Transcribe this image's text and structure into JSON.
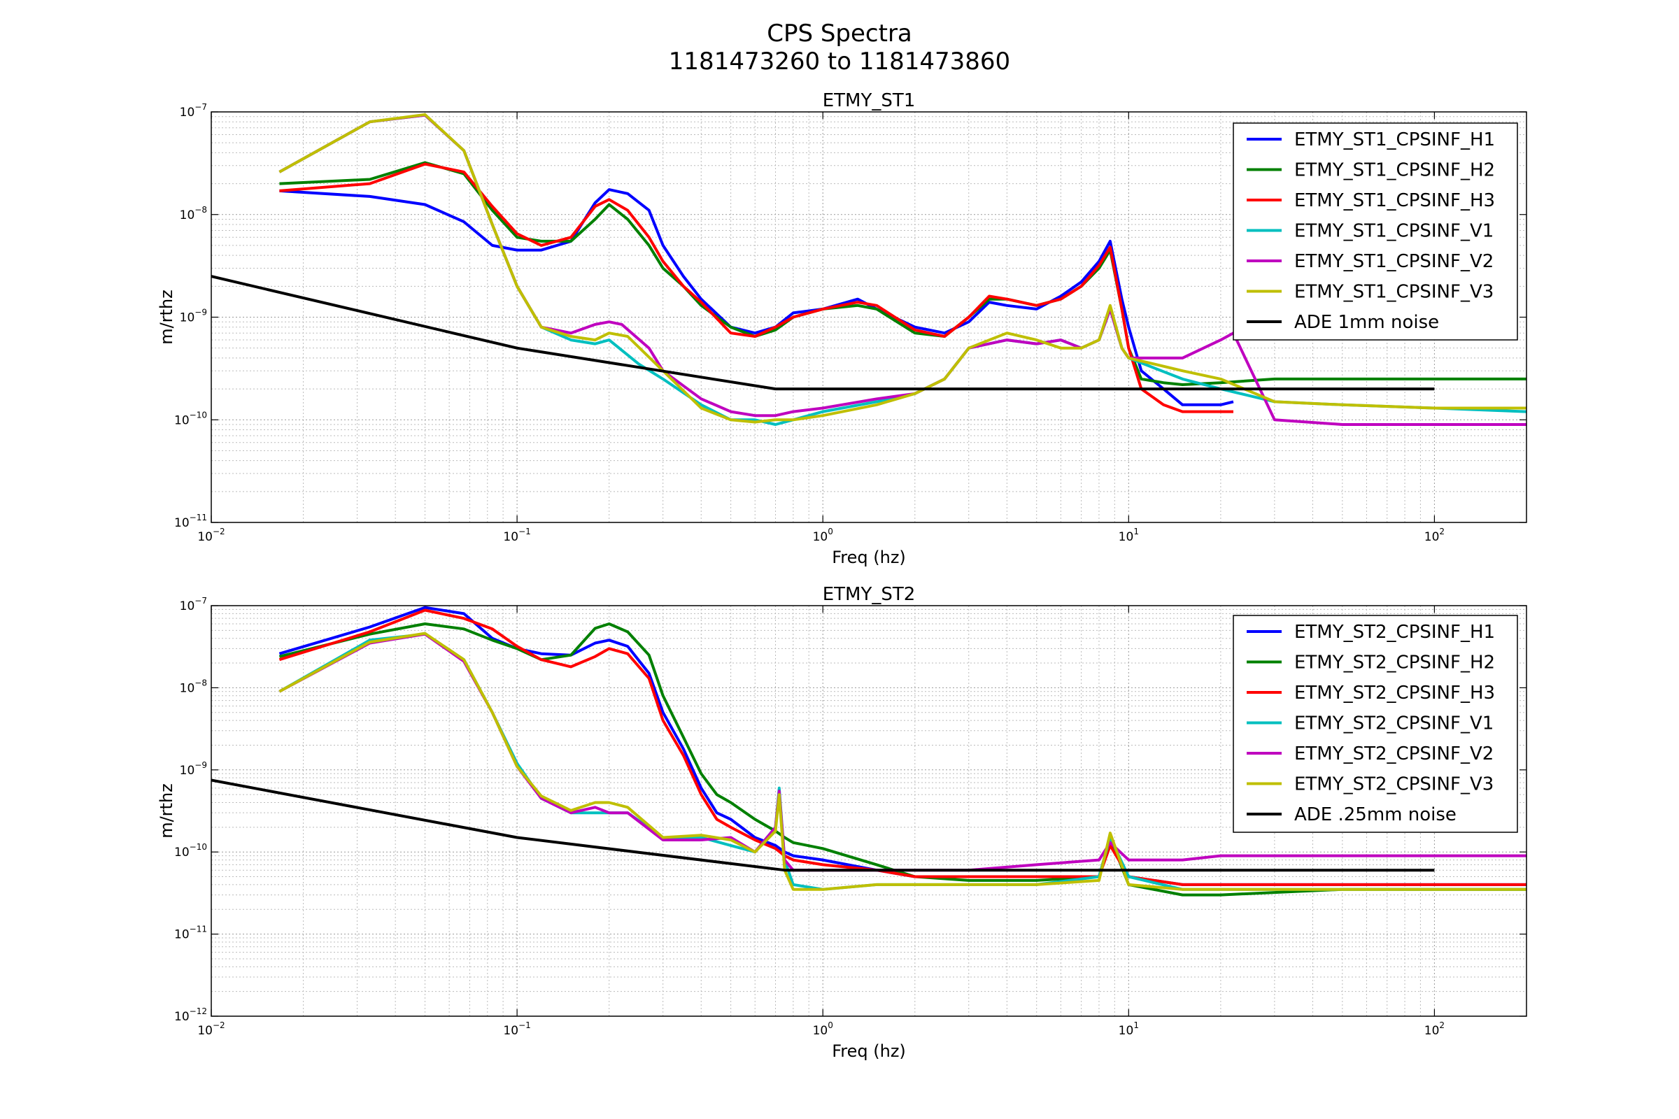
{
  "figure": {
    "title_line1": "CPS Spectra",
    "title_line2": "1181473260 to 1181473860"
  },
  "colors": {
    "blue": "#0000ff",
    "green": "#008000",
    "red": "#ff0000",
    "cyan": "#00bfbf",
    "magenta": "#bf00bf",
    "olive": "#bfbf00",
    "black": "#000000"
  },
  "chart_data": [
    {
      "type": "line",
      "title": "ETMY_ST1",
      "xlabel": "Freq (hz)",
      "ylabel": "m/rthz",
      "xscale": "log",
      "yscale": "log",
      "xlim": [
        0.01,
        200
      ],
      "ylim": [
        1e-11,
        1e-07
      ],
      "x_tick_labels": [
        "10^-2",
        "10^-1",
        "10^0",
        "10^1",
        "10^2"
      ],
      "y_tick_labels": [
        "10^-11",
        "10^-10",
        "10^-9",
        "10^-8",
        "10^-7"
      ],
      "grid": true,
      "legend_position": "upper-right",
      "series": [
        {
          "name": "ETMY_ST1_CPSINF_H1",
          "color": "#0000ff",
          "x": [
            0.0167,
            0.033,
            0.05,
            0.067,
            0.083,
            0.1,
            0.12,
            0.15,
            0.18,
            0.2,
            0.23,
            0.27,
            0.3,
            0.35,
            0.4,
            0.5,
            0.6,
            0.7,
            0.8,
            1.0,
            1.3,
            1.5,
            2,
            2.5,
            3,
            3.5,
            4,
            5,
            6,
            7,
            8,
            8.7,
            9.5,
            10,
            11,
            13,
            15,
            20,
            22
          ],
          "y": [
            1.7e-08,
            1.5e-08,
            1.25e-08,
            8.5e-09,
            5e-09,
            4.5e-09,
            4.5e-09,
            5.5e-09,
            1.3e-08,
            1.75e-08,
            1.6e-08,
            1.1e-08,
            5e-09,
            2.5e-09,
            1.5e-09,
            8e-10,
            7e-10,
            8e-10,
            1.1e-09,
            1.2e-09,
            1.5e-09,
            1.2e-09,
            8e-10,
            7e-10,
            9e-10,
            1.4e-09,
            1.3e-09,
            1.2e-09,
            1.6e-09,
            2.2e-09,
            3.5e-09,
            5.5e-09,
            1.5e-09,
            8e-10,
            3e-10,
            2e-10,
            1.4e-10,
            1.4e-10,
            1.5e-10
          ]
        },
        {
          "name": "ETMY_ST1_CPSINF_H2",
          "color": "#008000",
          "x": [
            0.0167,
            0.033,
            0.05,
            0.067,
            0.083,
            0.1,
            0.12,
            0.15,
            0.18,
            0.2,
            0.23,
            0.27,
            0.3,
            0.35,
            0.4,
            0.5,
            0.6,
            0.7,
            0.8,
            1.0,
            1.3,
            1.5,
            2,
            2.5,
            3,
            3.5,
            4,
            5,
            6,
            7,
            8,
            8.7,
            9.5,
            10,
            11,
            13,
            15,
            20,
            30,
            50,
            100,
            200
          ],
          "y": [
            2e-08,
            2.2e-08,
            3.2e-08,
            2.5e-08,
            1.1e-08,
            6e-09,
            5.5e-09,
            5.5e-09,
            9e-09,
            1.25e-08,
            9e-09,
            5e-09,
            3e-09,
            2e-09,
            1.3e-09,
            8e-10,
            6.5e-10,
            7.5e-10,
            1e-09,
            1.2e-09,
            1.3e-09,
            1.2e-09,
            7e-10,
            6.5e-10,
            1e-09,
            1.5e-09,
            1.5e-09,
            1.3e-09,
            1.5e-09,
            2e-09,
            3e-09,
            4.5e-09,
            1.2e-09,
            5e-10,
            2.5e-10,
            2.3e-10,
            2.2e-10,
            2.3e-10,
            2.5e-10,
            2.5e-10,
            2.5e-10,
            2.5e-10
          ]
        },
        {
          "name": "ETMY_ST1_CPSINF_H3",
          "color": "#ff0000",
          "x": [
            0.0167,
            0.033,
            0.05,
            0.067,
            0.083,
            0.1,
            0.12,
            0.15,
            0.18,
            0.2,
            0.23,
            0.27,
            0.3,
            0.35,
            0.4,
            0.5,
            0.6,
            0.7,
            0.8,
            1.0,
            1.3,
            1.5,
            2,
            2.5,
            3,
            3.5,
            4,
            5,
            6,
            7,
            8,
            8.7,
            9.5,
            10,
            11,
            13,
            15,
            20,
            22
          ],
          "y": [
            1.7e-08,
            2e-08,
            3.1e-08,
            2.6e-08,
            1.2e-08,
            6.5e-09,
            5e-09,
            6e-09,
            1.2e-08,
            1.4e-08,
            1.1e-08,
            6e-09,
            3.5e-09,
            2e-09,
            1.4e-09,
            7e-10,
            6.5e-10,
            8e-10,
            1e-09,
            1.2e-09,
            1.4e-09,
            1.3e-09,
            7.5e-10,
            6.5e-10,
            1e-09,
            1.6e-09,
            1.5e-09,
            1.3e-09,
            1.5e-09,
            2e-09,
            3.2e-09,
            4.8e-09,
            1.2e-09,
            5e-10,
            2e-10,
            1.4e-10,
            1.2e-10,
            1.2e-10,
            1.2e-10
          ]
        },
        {
          "name": "ETMY_ST1_CPSINF_V1",
          "color": "#00bfbf",
          "x": [
            0.0167,
            0.033,
            0.05,
            0.067,
            0.083,
            0.1,
            0.12,
            0.15,
            0.18,
            0.2,
            0.25,
            0.3,
            0.4,
            0.5,
            0.6,
            0.7,
            0.8,
            1.0,
            1.5,
            2,
            2.5,
            3,
            4,
            5,
            6,
            7,
            8,
            8.7,
            9.5,
            10,
            15,
            20,
            30,
            50,
            100,
            200
          ],
          "y": [
            2.6e-08,
            8e-08,
            9.3e-08,
            4.2e-08,
            8e-09,
            2e-09,
            8e-10,
            6e-10,
            5.5e-10,
            6e-10,
            3.5e-10,
            2.5e-10,
            1.4e-10,
            1e-10,
            1e-10,
            9e-11,
            1e-10,
            1.2e-10,
            1.5e-10,
            1.8e-10,
            2.5e-10,
            5e-10,
            6e-10,
            5.5e-10,
            6e-10,
            5e-10,
            6e-10,
            1.2e-09,
            5e-10,
            4e-10,
            2.5e-10,
            2e-10,
            1.5e-10,
            1.4e-10,
            1.3e-10,
            1.2e-10
          ]
        },
        {
          "name": "ETMY_ST1_CPSINF_V2",
          "color": "#bf00bf",
          "x": [
            0.0167,
            0.033,
            0.05,
            0.067,
            0.083,
            0.1,
            0.12,
            0.15,
            0.18,
            0.2,
            0.22,
            0.27,
            0.3,
            0.4,
            0.5,
            0.6,
            0.7,
            0.8,
            1.0,
            1.5,
            2,
            2.5,
            3,
            4,
            5,
            6,
            7,
            8,
            8.7,
            9.5,
            10,
            15,
            20,
            22,
            30,
            50,
            100,
            200
          ],
          "y": [
            2.6e-08,
            8e-08,
            9.3e-08,
            4.2e-08,
            8e-09,
            2e-09,
            8e-10,
            7e-10,
            8.5e-10,
            9e-10,
            8.5e-10,
            5e-10,
            3e-10,
            1.6e-10,
            1.2e-10,
            1.1e-10,
            1.1e-10,
            1.2e-10,
            1.3e-10,
            1.6e-10,
            1.8e-10,
            2.5e-10,
            5e-10,
            6e-10,
            5.5e-10,
            6e-10,
            5e-10,
            6e-10,
            1.2e-09,
            5e-10,
            4e-10,
            4e-10,
            6e-10,
            7e-10,
            1e-10,
            9e-11,
            9e-11,
            9e-11
          ]
        },
        {
          "name": "ETMY_ST1_CPSINF_V3",
          "color": "#bfbf00",
          "x": [
            0.0167,
            0.033,
            0.05,
            0.067,
            0.083,
            0.1,
            0.12,
            0.15,
            0.18,
            0.2,
            0.23,
            0.3,
            0.4,
            0.5,
            0.6,
            0.7,
            0.8,
            1.0,
            1.5,
            2,
            2.5,
            3,
            4,
            5,
            6,
            7,
            8,
            8.7,
            9.5,
            10,
            15,
            20,
            30,
            50,
            100,
            200
          ],
          "y": [
            2.6e-08,
            8e-08,
            9.4e-08,
            4.2e-08,
            8e-09,
            2e-09,
            8e-10,
            6.5e-10,
            6e-10,
            7e-10,
            6.5e-10,
            3e-10,
            1.3e-10,
            1e-10,
            9.5e-11,
            1e-10,
            1e-10,
            1.1e-10,
            1.4e-10,
            1.8e-10,
            2.5e-10,
            5e-10,
            7e-10,
            6e-10,
            5e-10,
            5e-10,
            6e-10,
            1.3e-09,
            5e-10,
            4e-10,
            3e-10,
            2.5e-10,
            1.5e-10,
            1.4e-10,
            1.3e-10,
            1.3e-10
          ]
        },
        {
          "name": "ADE 1mm noise",
          "color": "#000000",
          "x": [
            0.01,
            0.1,
            0.7,
            100
          ],
          "y": [
            2.5e-09,
            5e-10,
            2e-10,
            2e-10
          ]
        }
      ]
    },
    {
      "type": "line",
      "title": "ETMY_ST2",
      "xlabel": "Freq (hz)",
      "ylabel": "m/rthz",
      "xscale": "log",
      "yscale": "log",
      "xlim": [
        0.01,
        200
      ],
      "ylim": [
        1e-12,
        1e-07
      ],
      "x_tick_labels": [
        "10^-2",
        "10^-1",
        "10^0",
        "10^1",
        "10^2"
      ],
      "y_tick_labels": [
        "10^-12",
        "10^-11",
        "10^-10",
        "10^-9",
        "10^-8",
        "10^-7"
      ],
      "grid": true,
      "legend_position": "upper-right",
      "series": [
        {
          "name": "ETMY_ST2_CPSINF_H1",
          "color": "#0000ff",
          "x": [
            0.0167,
            0.033,
            0.05,
            0.067,
            0.083,
            0.1,
            0.12,
            0.15,
            0.18,
            0.2,
            0.23,
            0.27,
            0.3,
            0.35,
            0.4,
            0.45,
            0.5,
            0.6,
            0.7,
            0.75,
            0.8,
            1.0,
            1.5,
            2,
            3,
            5,
            8,
            8.7,
            10,
            15,
            20,
            50,
            100,
            200
          ],
          "y": [
            2.6e-08,
            5.5e-08,
            9.5e-08,
            8e-08,
            4e-08,
            3e-08,
            2.6e-08,
            2.5e-08,
            3.5e-08,
            3.8e-08,
            3.2e-08,
            1.5e-08,
            5e-09,
            1.8e-09,
            6e-10,
            3e-10,
            2.5e-10,
            1.5e-10,
            1.2e-10,
            1e-10,
            9e-11,
            8e-11,
            6e-11,
            5e-11,
            5e-11,
            5e-11,
            5e-11,
            1.3e-10,
            5e-11,
            4e-11,
            4e-11,
            4e-11,
            4e-11,
            4e-11
          ]
        },
        {
          "name": "ETMY_ST2_CPSINF_H2",
          "color": "#008000",
          "x": [
            0.0167,
            0.033,
            0.05,
            0.067,
            0.083,
            0.1,
            0.12,
            0.15,
            0.18,
            0.2,
            0.23,
            0.27,
            0.3,
            0.35,
            0.4,
            0.45,
            0.5,
            0.6,
            0.7,
            0.75,
            0.8,
            1.0,
            1.5,
            2,
            3,
            5,
            8,
            8.7,
            10,
            15,
            20,
            50,
            100,
            200
          ],
          "y": [
            2.4e-08,
            4.5e-08,
            6e-08,
            5.2e-08,
            3.8e-08,
            3e-08,
            2.2e-08,
            2.5e-08,
            5.3e-08,
            6e-08,
            4.8e-08,
            2.5e-08,
            8e-09,
            2.5e-09,
            9e-10,
            5e-10,
            4e-10,
            2.5e-10,
            1.8e-10,
            1.5e-10,
            1.3e-10,
            1.1e-10,
            7e-11,
            5e-11,
            4.5e-11,
            4.5e-11,
            5e-11,
            1.5e-10,
            4e-11,
            3e-11,
            3e-11,
            3.5e-11,
            3.5e-11,
            3.5e-11
          ]
        },
        {
          "name": "ETMY_ST2_CPSINF_H3",
          "color": "#ff0000",
          "x": [
            0.0167,
            0.033,
            0.05,
            0.067,
            0.083,
            0.1,
            0.12,
            0.15,
            0.18,
            0.2,
            0.23,
            0.27,
            0.3,
            0.35,
            0.4,
            0.45,
            0.5,
            0.6,
            0.7,
            0.75,
            0.8,
            1.0,
            1.5,
            2,
            3,
            5,
            8,
            8.7,
            10,
            15,
            20,
            50,
            100,
            200
          ],
          "y": [
            2.2e-08,
            4.8e-08,
            8.8e-08,
            7e-08,
            5.2e-08,
            3.2e-08,
            2.2e-08,
            1.8e-08,
            2.4e-08,
            3e-08,
            2.6e-08,
            1.3e-08,
            4e-09,
            1.5e-09,
            5e-10,
            2.5e-10,
            2e-10,
            1.4e-10,
            1.1e-10,
            9e-11,
            8e-11,
            7e-11,
            6e-11,
            5e-11,
            5e-11,
            5e-11,
            5e-11,
            1.2e-10,
            5e-11,
            4e-11,
            4e-11,
            4e-11,
            4e-11,
            4e-11
          ]
        },
        {
          "name": "ETMY_ST2_CPSINF_V1",
          "color": "#00bfbf",
          "x": [
            0.0167,
            0.033,
            0.05,
            0.067,
            0.083,
            0.1,
            0.12,
            0.15,
            0.18,
            0.2,
            0.23,
            0.3,
            0.4,
            0.5,
            0.6,
            0.7,
            0.72,
            0.75,
            0.8,
            1.0,
            1.5,
            2,
            3,
            5,
            8,
            8.7,
            10,
            15,
            20,
            50,
            100,
            200
          ],
          "y": [
            9e-09,
            3.8e-08,
            4.5e-08,
            2.2e-08,
            5e-09,
            1.2e-09,
            4.5e-10,
            3e-10,
            3e-10,
            3e-10,
            3e-10,
            1.5e-10,
            1.5e-10,
            1.2e-10,
            1e-10,
            2e-10,
            6e-10,
            8e-11,
            4e-11,
            3.5e-11,
            4e-11,
            4e-11,
            4e-11,
            4e-11,
            5e-11,
            1.5e-10,
            5e-11,
            3.5e-11,
            3.5e-11,
            3.5e-11,
            3.5e-11,
            3.5e-11
          ]
        },
        {
          "name": "ETMY_ST2_CPSINF_V2",
          "color": "#bf00bf",
          "x": [
            0.0167,
            0.033,
            0.05,
            0.067,
            0.083,
            0.1,
            0.12,
            0.15,
            0.18,
            0.2,
            0.23,
            0.3,
            0.4,
            0.5,
            0.6,
            0.7,
            0.72,
            0.75,
            0.8,
            1.0,
            1.5,
            2,
            3,
            5,
            8,
            8.7,
            10,
            15,
            20,
            50,
            100,
            200
          ],
          "y": [
            9e-09,
            3.5e-08,
            4.5e-08,
            2.1e-08,
            5e-09,
            1.1e-09,
            4.5e-10,
            3e-10,
            3.5e-10,
            3e-10,
            3e-10,
            1.4e-10,
            1.4e-10,
            1.5e-10,
            1e-10,
            2e-10,
            5.5e-10,
            8e-11,
            6e-11,
            6e-11,
            6e-11,
            6e-11,
            6e-11,
            7e-11,
            8e-11,
            1.3e-10,
            8e-11,
            8e-11,
            9e-11,
            9e-11,
            9e-11,
            9e-11
          ]
        },
        {
          "name": "ETMY_ST2_CPSINF_V3",
          "color": "#bfbf00",
          "x": [
            0.0167,
            0.033,
            0.05,
            0.067,
            0.083,
            0.1,
            0.12,
            0.15,
            0.18,
            0.2,
            0.23,
            0.3,
            0.4,
            0.5,
            0.6,
            0.7,
            0.72,
            0.75,
            0.8,
            1.0,
            1.5,
            2,
            3,
            5,
            8,
            8.7,
            10,
            15,
            20,
            50,
            100,
            200
          ],
          "y": [
            9e-09,
            3.6e-08,
            4.6e-08,
            2.2e-08,
            5e-09,
            1.1e-09,
            4.8e-10,
            3.2e-10,
            4e-10,
            4e-10,
            3.5e-10,
            1.5e-10,
            1.6e-10,
            1.4e-10,
            1e-10,
            1.8e-10,
            5e-10,
            6e-11,
            3.5e-11,
            3.5e-11,
            4e-11,
            4e-11,
            4e-11,
            4e-11,
            4.5e-11,
            1.7e-10,
            4e-11,
            3.5e-11,
            3.5e-11,
            3.5e-11,
            3.5e-11,
            3.5e-11
          ]
        },
        {
          "name": "ADE .25mm noise",
          "color": "#000000",
          "x": [
            0.01,
            0.1,
            0.75,
            100
          ],
          "y": [
            7.5e-10,
            1.5e-10,
            6e-11,
            6e-11
          ]
        }
      ]
    }
  ]
}
